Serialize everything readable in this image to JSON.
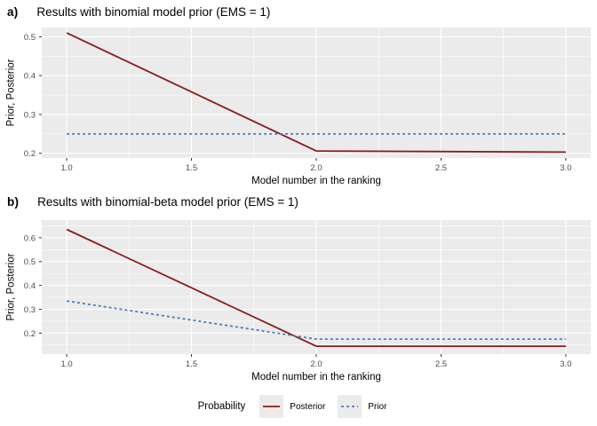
{
  "styles": {
    "panel_bg": "#ebebeb",
    "grid_color": "#ffffff",
    "tick_mark_color": "#333333",
    "tick_label_color": "#4d4d4d",
    "posterior_color": "#8b1a1a",
    "prior_color": "#4f7bc0",
    "legend_key_bg": "#ebebeb"
  },
  "chart_data": [
    {
      "type": "line",
      "panel_label": "a)",
      "title": "Results with binomial model prior (EMS = 1)",
      "xlabel": "Model number in the ranking",
      "ylabel": "Prior, Posterior",
      "x": [
        1,
        2,
        3
      ],
      "series": [
        {
          "name": "Posterior",
          "color": "#8b1a1a",
          "dash": "solid",
          "values": [
            0.51,
            0.206,
            0.203
          ]
        },
        {
          "name": "Prior",
          "color": "#4f7bc0",
          "dash": "dashed",
          "values": [
            0.25,
            0.25,
            0.25
          ]
        }
      ],
      "xlim": [
        0.9,
        3.1
      ],
      "ylim": [
        0.188,
        0.524
      ],
      "xticks": {
        "values": [
          1,
          1.5,
          2,
          2.5,
          3
        ],
        "labels": [
          "1.0",
          "1.5",
          "2.0",
          "2.5",
          "3.0"
        ]
      },
      "yticks": {
        "values": [
          0.2,
          0.3,
          0.4,
          0.5
        ],
        "labels": [
          "0.2",
          "0.3",
          "0.4",
          "0.5"
        ]
      },
      "grid": true,
      "legend_position": "bottom"
    },
    {
      "type": "line",
      "panel_label": "b)",
      "title": "Results with binomial-beta model prior (EMS = 1)",
      "xlabel": "Model number in the ranking",
      "ylabel": "Prior, Posterior",
      "x": [
        1,
        2,
        3
      ],
      "series": [
        {
          "name": "Posterior",
          "color": "#8b1a1a",
          "dash": "solid",
          "values": [
            0.635,
            0.145,
            0.145
          ]
        },
        {
          "name": "Prior",
          "color": "#4f7bc0",
          "dash": "dashed",
          "values": [
            0.335,
            0.175,
            0.175
          ]
        }
      ],
      "xlim": [
        0.9,
        3.1
      ],
      "ylim": [
        0.112,
        0.674
      ],
      "xticks": {
        "values": [
          1,
          1.5,
          2,
          2.5,
          3
        ],
        "labels": [
          "1.0",
          "1.5",
          "2.0",
          "2.5",
          "3.0"
        ]
      },
      "yticks": {
        "values": [
          0.2,
          0.3,
          0.4,
          0.5,
          0.6
        ],
        "labels": [
          "0.2",
          "0.3",
          "0.4",
          "0.5",
          "0.6"
        ]
      },
      "grid": true,
      "legend_position": "bottom"
    }
  ],
  "legend": {
    "title": "Probability",
    "items": [
      {
        "label": "Posterior",
        "color": "#8b1a1a",
        "dash": "solid"
      },
      {
        "label": "Prior",
        "color": "#4f7bc0",
        "dash": "dashed"
      }
    ]
  }
}
